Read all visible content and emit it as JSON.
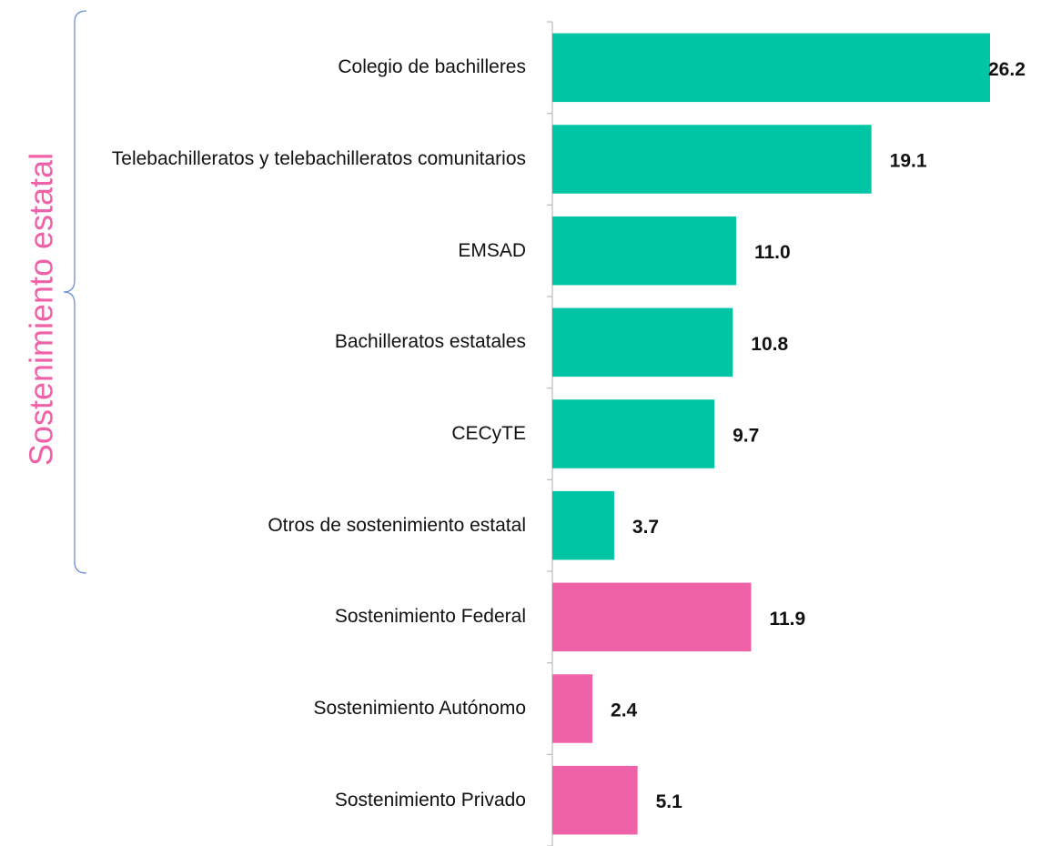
{
  "chart_data": {
    "type": "hbar",
    "annotation": "Sostenimiento estatal",
    "categories": [
      "Colegio de bachilleres",
      "Telebachilleratos y telebachilleratos comunitarios",
      "EMSAD",
      "Bachilleratos estatales",
      "CECyTE",
      "Otros de sostenimiento estatal",
      "Sostenimiento Federal",
      "Sostenimiento Autónomo",
      "Sostenimiento Privado"
    ],
    "values": [
      26.2,
      19.1,
      11,
      10.8,
      9.7,
      3.7,
      11.9,
      2.4,
      5.1
    ],
    "value_labels": [
      "26.2",
      "19.1",
      "11.0",
      "10.8",
      "9.7",
      "3.7",
      "11.9",
      "2.4",
      "5.1"
    ],
    "colors": [
      "#00c5a5",
      "#00c5a5",
      "#00c5a5",
      "#00c5a5",
      "#00c5a5",
      "#00c5a5",
      "#f062a8",
      "#f062a8",
      "#f062a8"
    ],
    "xlim": [
      0,
      26.2
    ]
  }
}
